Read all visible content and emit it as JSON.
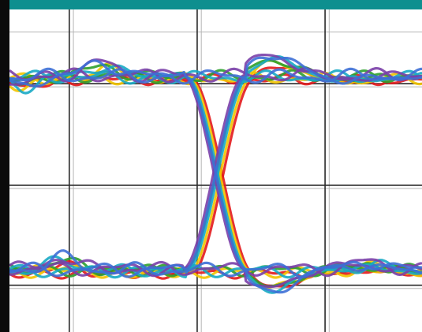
{
  "chart_data": {
    "type": "line",
    "plot": "eye-diagram",
    "title": "",
    "xlabel": "",
    "ylabel": "",
    "xlim": [
      0,
      1
    ],
    "ylim": [
      0,
      1
    ],
    "grid": true,
    "legend": "none",
    "colors": {
      "frame_top": "#0e8f8f",
      "frame_left": "#0b0b0b",
      "plot_background": "#ffffff",
      "grid": "#2a2a2a",
      "grid_minor": "#b5b5b5"
    },
    "levels": {
      "high": 0.79,
      "low": 0.19
    },
    "crossing": {
      "x": 0.505,
      "y": 0.49
    },
    "transition": {
      "start": 0.43,
      "end": 0.58
    },
    "ringing": {
      "x": 0.76,
      "peak_high": 0.89,
      "trough_low": 0.08
    },
    "series": [
      {
        "color": "#e31a1c",
        "offset": -0.012
      },
      {
        "color": "#f2c400",
        "offset": -0.006
      },
      {
        "color": "#2ca02c",
        "offset": 0.004
      },
      {
        "color": "#17a9c4",
        "offset": 0.0
      },
      {
        "color": "#7a3fa8",
        "offset": 0.01
      },
      {
        "color": "#3d6fd6",
        "offset": 0.005
      }
    ]
  }
}
